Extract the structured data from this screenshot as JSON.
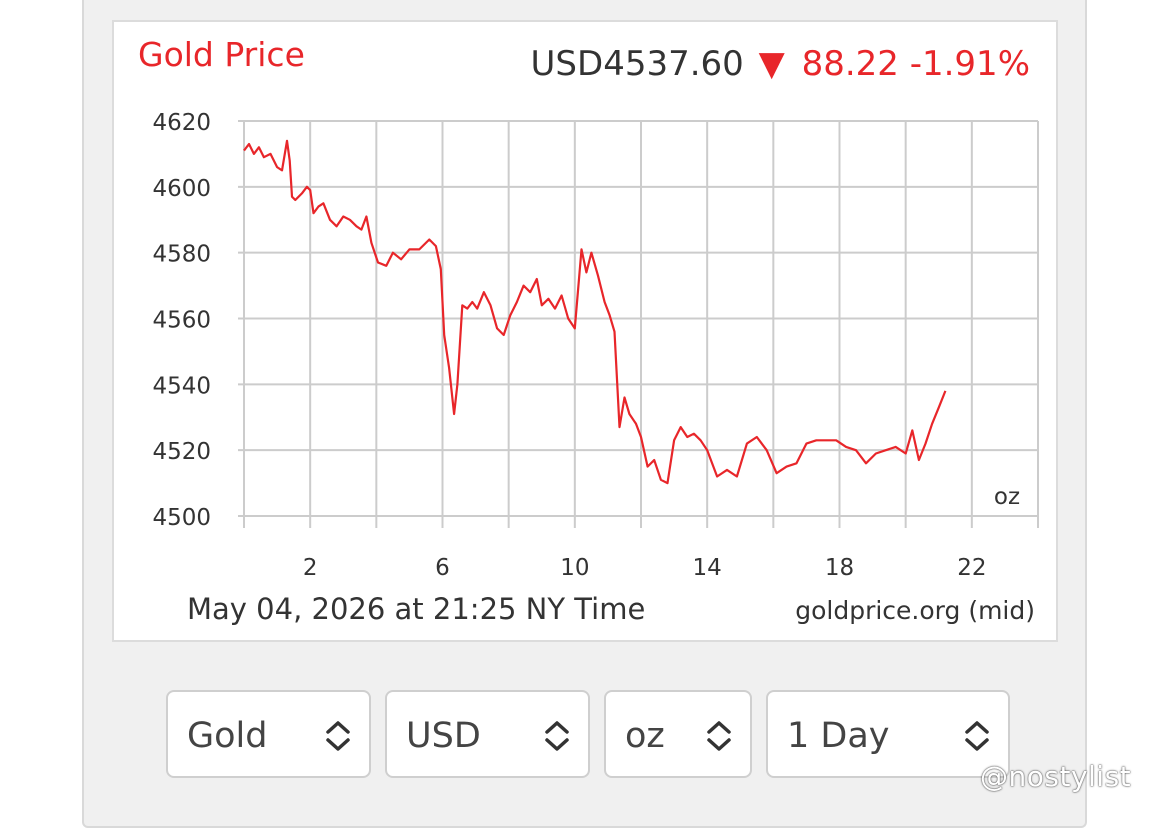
{
  "chart_data": {
    "type": "line",
    "title": "Gold Price",
    "quote": {
      "price_text": "USD4537.60",
      "change_arrow": "▼",
      "change_text": "88.22 -1.91%"
    },
    "unit_label": "oz",
    "timestamp": "May 04, 2026 at 21:25 NY Time",
    "source": "goldprice.org (mid)",
    "xlim": [
      0,
      24
    ],
    "ylim": [
      4500,
      4620
    ],
    "xticks": [
      2,
      6,
      10,
      14,
      18,
      22
    ],
    "yticks": [
      4500,
      4520,
      4540,
      4560,
      4580,
      4600,
      4620
    ],
    "grid": true,
    "series": [
      {
        "color": "#e8262a",
        "x": [
          0.0,
          0.15,
          0.3,
          0.45,
          0.6,
          0.8,
          1.0,
          1.15,
          1.3,
          1.38,
          1.45,
          1.55,
          1.75,
          1.9,
          2.0,
          2.1,
          2.25,
          2.4,
          2.6,
          2.8,
          3.0,
          3.2,
          3.4,
          3.55,
          3.7,
          3.85,
          4.05,
          4.3,
          4.5,
          4.75,
          5.0,
          5.3,
          5.6,
          5.8,
          5.95,
          6.05,
          6.2,
          6.35,
          6.45,
          6.6,
          6.75,
          6.9,
          7.05,
          7.25,
          7.45,
          7.65,
          7.85,
          8.05,
          8.25,
          8.45,
          8.65,
          8.85,
          9.0,
          9.2,
          9.4,
          9.6,
          9.8,
          10.0,
          10.2,
          10.35,
          10.5,
          10.7,
          10.9,
          11.05,
          11.2,
          11.35,
          11.5,
          11.65,
          11.85,
          12.0,
          12.2,
          12.4,
          12.6,
          12.8,
          13.0,
          13.2,
          13.4,
          13.6,
          13.8,
          14.0,
          14.3,
          14.6,
          14.9,
          15.2,
          15.5,
          15.8,
          16.1,
          16.4,
          16.7,
          17.0,
          17.3,
          17.6,
          17.9,
          18.2,
          18.5,
          18.8,
          19.1,
          19.4,
          19.7,
          20.0,
          20.2,
          20.4,
          20.6,
          20.8,
          21.0,
          21.2
        ],
        "y": [
          4611,
          4613,
          4610,
          4612,
          4609,
          4610,
          4606,
          4605,
          4614,
          4608,
          4597,
          4596,
          4598,
          4600,
          4599,
          4592,
          4594,
          4595,
          4590,
          4588,
          4591,
          4590,
          4588,
          4587,
          4591,
          4583,
          4577,
          4576,
          4580,
          4578,
          4581,
          4581,
          4584,
          4582,
          4575,
          4555,
          4545,
          4531,
          4540,
          4564,
          4563,
          4565,
          4563,
          4568,
          4564,
          4557,
          4555,
          4561,
          4565,
          4570,
          4568,
          4572,
          4564,
          4566,
          4563,
          4567,
          4560,
          4557,
          4581,
          4574,
          4580,
          4573,
          4565,
          4561,
          4556,
          4527,
          4536,
          4531,
          4528,
          4524,
          4515,
          4517,
          4511,
          4510,
          4523,
          4527,
          4524,
          4525,
          4523,
          4520,
          4512,
          4514,
          4512,
          4522,
          4524,
          4520,
          4513,
          4515,
          4516,
          4522,
          4523,
          4523,
          4523,
          4521,
          4520,
          4516,
          4519,
          4520,
          4521,
          4519,
          4526,
          4517,
          4522,
          4528,
          4533,
          4538
        ]
      }
    ]
  },
  "controls": {
    "metal": "Gold",
    "currency": "USD",
    "unit": "oz",
    "period": "1 Day"
  },
  "watermark": "@nostylist",
  "colors": {
    "accent": "#e8262a",
    "grid": "#cccccc",
    "text": "#333333"
  }
}
